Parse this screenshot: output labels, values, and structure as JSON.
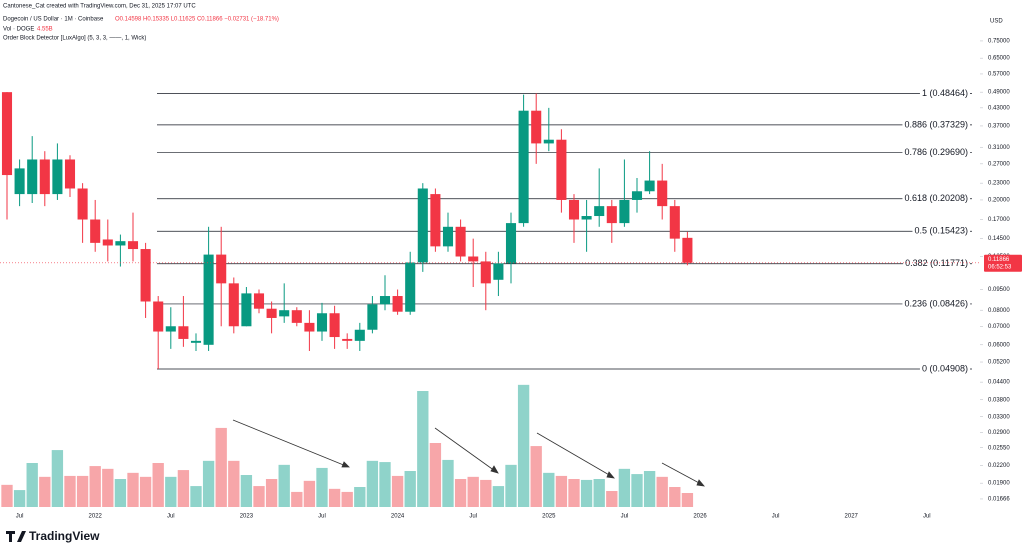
{
  "chart_data": {
    "type": "candlestick",
    "attribution": "Cantonese_Cat created with TradingView.com, Dec 31, 2025 17:07 UTC",
    "symbol": "Dogecoin / US Dollar · 1M · Coinbase",
    "ohlc_text": "O0.14598 H0.15335 L0.11625 C0.11866 −0.02731 (−18.71%)",
    "volume_title": "Vol · DOGE",
    "volume_value_label": "4.55B",
    "indicator": "Order Block Detector [LuxAlgo] (5, 3, 3, ——, 1, Wick)",
    "currency": "USD",
    "countdown": "06:52:53",
    "branding": "TradingView",
    "up_color": "#089981",
    "down_color": "#f23645",
    "up_volume_color": "#8fd3ca",
    "down_volume_color": "#f7a6a9",
    "log_scale": true,
    "categories": [
      null,
      "Jul",
      null,
      null,
      null,
      null,
      null,
      "2022",
      null,
      null,
      null,
      null,
      null,
      "Jul",
      null,
      null,
      null,
      null,
      null,
      "2023",
      null,
      null,
      null,
      null,
      null,
      "Jul",
      null,
      null,
      null,
      null,
      null,
      "2024",
      null,
      null,
      null,
      null,
      null,
      "Jul",
      null,
      null,
      null,
      null,
      null,
      "2025",
      null,
      null,
      null,
      null,
      null,
      "Jul",
      null,
      null,
      null,
      null,
      null,
      "2026",
      null,
      null,
      null,
      null,
      null,
      "Jul",
      null,
      null,
      null,
      null,
      null,
      "2027",
      null,
      null,
      null,
      null,
      null,
      "Jul",
      null,
      null
    ],
    "open": [
      0.49,
      0.21,
      0.21,
      0.28,
      0.21,
      0.28,
      0.22,
      0.17,
      0.144,
      0.137,
      0.142,
      0.133,
      0.086,
      0.067,
      0.07,
      0.061,
      0.06,
      0.127,
      0.1,
      0.07,
      0.092,
      0.081,
      0.076,
      0.08,
      0.072,
      0.067,
      0.078,
      0.063,
      0.062,
      0.068,
      0.084,
      0.09,
      0.079,
      0.119,
      0.21,
      0.136,
      0.16,
      0.125,
      0.12,
      0.103,
      0.118,
      0.165,
      0.42,
      0.32,
      0.33,
      0.2,
      0.17,
      0.175,
      0.19,
      0.165,
      0.2,
      0.215,
      0.235,
      0.19,
      0.14598,
      null,
      null,
      null,
      null,
      null,
      null,
      null,
      null,
      null,
      null,
      null,
      null,
      null,
      null,
      null,
      null,
      null,
      null,
      null,
      null,
      null
    ],
    "high": [
      0.49,
      0.28,
      0.34,
      0.3,
      0.32,
      0.29,
      0.23,
      0.2,
      0.17,
      0.15,
      0.18,
      0.14,
      0.09,
      0.082,
      0.09,
      0.066,
      0.16,
      0.16,
      0.105,
      0.097,
      0.095,
      0.086,
      0.1,
      0.082,
      0.08,
      0.085,
      0.083,
      0.066,
      0.072,
      0.09,
      0.107,
      0.095,
      0.13,
      0.23,
      0.22,
      0.18,
      0.17,
      0.145,
      0.13,
      0.13,
      0.18,
      0.48,
      0.48464,
      0.43,
      0.36,
      0.21,
      0.2,
      0.26,
      0.2,
      0.28,
      0.24,
      0.3,
      0.27,
      0.2,
      0.15335,
      null,
      null,
      null,
      null,
      null,
      null,
      null,
      null,
      null,
      null,
      null,
      null,
      null,
      null,
      null,
      null,
      null,
      null,
      null,
      null,
      null
    ],
    "low": [
      0.17,
      0.19,
      0.195,
      0.19,
      0.2,
      0.205,
      0.14,
      0.13,
      0.12,
      0.115,
      0.12,
      0.075,
      0.04908,
      0.058,
      0.059,
      0.057,
      0.057,
      0.07,
      0.066,
      0.07,
      0.078,
      0.066,
      0.072,
      0.07,
      0.057,
      0.062,
      0.058,
      0.058,
      0.057,
      0.066,
      0.08,
      0.077,
      0.077,
      0.11,
      0.13,
      0.13,
      0.12,
      0.097,
      0.08,
      0.09,
      0.1,
      0.16,
      0.27,
      0.3,
      0.18,
      0.14,
      0.13,
      0.16,
      0.14,
      0.16,
      0.18,
      0.21,
      0.17,
      0.13,
      0.11625,
      null,
      null,
      null,
      null,
      null,
      null,
      null,
      null,
      null,
      null,
      null,
      null,
      null,
      null,
      null,
      null,
      null,
      null,
      null,
      null,
      null
    ],
    "close": [
      0.246,
      0.26,
      0.28,
      0.21,
      0.28,
      0.22,
      0.17,
      0.14,
      0.137,
      0.142,
      0.133,
      0.086,
      0.067,
      0.07,
      0.063,
      0.062,
      0.127,
      0.1,
      0.07,
      0.092,
      0.081,
      0.075,
      0.08,
      0.072,
      0.067,
      0.078,
      0.064,
      0.062,
      0.068,
      0.084,
      0.09,
      0.079,
      0.119,
      0.22,
      0.136,
      0.16,
      0.125,
      0.12,
      0.1,
      0.118,
      0.165,
      0.42,
      0.32,
      0.33,
      0.2,
      0.17,
      0.175,
      0.19,
      0.165,
      0.2,
      0.215,
      0.235,
      0.19,
      0.145,
      0.11866,
      null,
      null,
      null,
      null,
      null,
      null,
      null,
      null,
      null,
      null,
      null,
      null,
      null,
      null,
      null,
      null,
      null,
      null,
      null,
      null,
      null
    ],
    "volume": [
      7.2,
      5.5,
      14.3,
      9.8,
      18.5,
      10.1,
      10.1,
      13.3,
      12.4,
      9.1,
      11.1,
      9.8,
      14.3,
      9.8,
      12.0,
      6.8,
      15.0,
      25.7,
      15.0,
      10.4,
      6.8,
      9.1,
      13.7,
      4.9,
      8.5,
      12.7,
      5.9,
      4.9,
      6.5,
      15.0,
      14.6,
      10.1,
      11.7,
      37.7,
      20.8,
      15.3,
      9.1,
      9.8,
      8.8,
      6.8,
      13.7,
      39.7,
      19.8,
      11.1,
      10.1,
      9.1,
      8.8,
      9.1,
      5.2,
      12.4,
      10.7,
      11.7,
      9.8,
      6.5,
      4.55,
      null,
      null,
      null,
      null,
      null,
      null,
      null,
      null,
      null,
      null,
      null,
      null,
      null,
      null,
      null,
      null,
      null,
      null,
      null,
      null,
      null
    ],
    "volume_lim": [
      0,
      45.5
    ],
    "ylim": [
      0.0152,
      1.054
    ],
    "yticks": [
      {
        "value": 0.75,
        "label": "0.75000"
      },
      {
        "value": 0.65,
        "label": "0.65000"
      },
      {
        "value": 0.57,
        "label": "0.57000"
      },
      {
        "value": 0.49,
        "label": "0.49000"
      },
      {
        "value": 0.43,
        "label": "0.43000"
      },
      {
        "value": 0.37,
        "label": "0.37000"
      },
      {
        "value": 0.31,
        "label": "0.31000"
      },
      {
        "value": 0.27,
        "label": "0.27000"
      },
      {
        "value": 0.23,
        "label": "0.23000"
      },
      {
        "value": 0.2,
        "label": "0.20000"
      },
      {
        "value": 0.17,
        "label": "0.17000"
      },
      {
        "value": 0.145,
        "label": "0.14500"
      },
      {
        "value": 0.125,
        "label": "0.12500"
      },
      {
        "value": 0.095,
        "label": "0.09500"
      },
      {
        "value": 0.08,
        "label": "0.08000"
      },
      {
        "value": 0.07,
        "label": "0.07000"
      },
      {
        "value": 0.06,
        "label": "0.06000"
      },
      {
        "value": 0.052,
        "label": "0.05200"
      },
      {
        "value": 0.044,
        "label": "0.04400"
      },
      {
        "value": 0.038,
        "label": "0.03800"
      },
      {
        "value": 0.033,
        "label": "0.03300"
      },
      {
        "value": 0.029,
        "label": "0.02900"
      },
      {
        "value": 0.0255,
        "label": "0.02550"
      },
      {
        "value": 0.022,
        "label": "0.02200"
      },
      {
        "value": 0.019,
        "label": "0.01900"
      },
      {
        "value": 0.01666,
        "label": "0.01666"
      }
    ],
    "fib_levels": [
      {
        "value": 0.48464,
        "label": "1 (0.48464)"
      },
      {
        "value": 0.37329,
        "label": "0.886 (0.37329)"
      },
      {
        "value": 0.2969,
        "label": "0.786 (0.29690)"
      },
      {
        "value": 0.20208,
        "label": "0.618 (0.20208)"
      },
      {
        "value": 0.15423,
        "label": "0.5 (0.15423)"
      },
      {
        "value": 0.11771,
        "label": "0.382 (0.11771)"
      },
      {
        "value": 0.08426,
        "label": "0.236 (0.08426)"
      },
      {
        "value": 0.04908,
        "label": "0 (0.04908)"
      }
    ]
  }
}
